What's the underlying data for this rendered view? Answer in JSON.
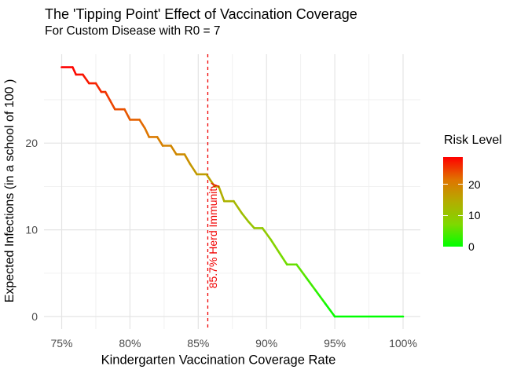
{
  "chart_data": {
    "type": "line",
    "title": "The 'Tipping Point' Effect of Vaccination Coverage",
    "subtitle": "For Custom Disease with R0 = 7",
    "xlabel": "Kindergarten Vaccination Coverage Rate",
    "ylabel": "Expected Infections (in a school of 100 )",
    "grid": "on",
    "legend_position": "right",
    "x_axis": {
      "unit": "percent",
      "range": [
        75,
        100
      ],
      "ticks": [
        75,
        80,
        85,
        90,
        95,
        100
      ],
      "tick_labels": [
        "75%",
        "80%",
        "85%",
        "90%",
        "95%",
        "100%"
      ],
      "minor_ticks": [
        77.5,
        82.5,
        87.5,
        92.5,
        97.5
      ]
    },
    "y_axis": {
      "range": [
        0,
        28.75
      ],
      "ticks": [
        0,
        10,
        20
      ],
      "tick_labels": [
        "0",
        "10",
        "20"
      ],
      "minor_ticks": [
        5,
        15,
        25
      ]
    },
    "series": [
      {
        "name": "expected_infections",
        "color_mapped_to": "Risk Level",
        "points": [
          [
            75.0,
            28.75
          ],
          [
            75.8,
            28.75
          ],
          [
            76.05,
            27.9
          ],
          [
            76.55,
            27.9
          ],
          [
            77.0,
            26.9
          ],
          [
            77.5,
            26.9
          ],
          [
            77.9,
            25.9
          ],
          [
            78.2,
            25.9
          ],
          [
            78.55,
            24.9
          ],
          [
            78.9,
            23.9
          ],
          [
            79.6,
            23.9
          ],
          [
            80.0,
            22.7
          ],
          [
            80.7,
            22.7
          ],
          [
            81.1,
            21.7
          ],
          [
            81.4,
            20.7
          ],
          [
            82.0,
            20.7
          ],
          [
            82.4,
            19.7
          ],
          [
            83.0,
            19.7
          ],
          [
            83.4,
            18.7
          ],
          [
            84.0,
            18.7
          ],
          [
            84.4,
            17.6
          ],
          [
            84.9,
            16.4
          ],
          [
            85.6,
            16.4
          ],
          [
            86.2,
            15.0
          ],
          [
            86.5,
            15.0
          ],
          [
            86.9,
            13.3
          ],
          [
            87.6,
            13.3
          ],
          [
            88.2,
            11.9
          ],
          [
            88.7,
            10.9
          ],
          [
            89.1,
            10.2
          ],
          [
            89.7,
            10.2
          ],
          [
            90.3,
            8.9
          ],
          [
            91.0,
            7.2
          ],
          [
            91.5,
            6.0
          ],
          [
            92.2,
            6.0
          ],
          [
            92.9,
            4.5
          ],
          [
            93.6,
            3.0
          ],
          [
            94.3,
            1.5
          ],
          [
            95.0,
            0.0
          ],
          [
            100.0,
            0.0
          ]
        ]
      }
    ],
    "color_scale": {
      "title": "Risk Level",
      "domain": [
        0,
        28.75
      ],
      "low_color": "#00FF00",
      "high_color": "#FF0000",
      "stops": [
        {
          "pos": 0.0,
          "color": "#00FF00"
        },
        {
          "pos": 0.25,
          "color": "#7FD800"
        },
        {
          "pos": 0.5,
          "color": "#B3AD00"
        },
        {
          "pos": 0.75,
          "color": "#E07300"
        },
        {
          "pos": 1.0,
          "color": "#FF0000"
        }
      ],
      "breaks": [
        0,
        10,
        20
      ],
      "break_labels": [
        "0",
        "10",
        "20"
      ]
    },
    "annotation": {
      "vline_x": 85.7,
      "line_style": "dashed",
      "color": "#F00000",
      "label": "85.7% Herd Immunity"
    },
    "style_colors": {
      "axis_text": "#4D4D4D",
      "major_grid": "#E4E4E4",
      "minor_grid": "#EFEFEF"
    }
  }
}
